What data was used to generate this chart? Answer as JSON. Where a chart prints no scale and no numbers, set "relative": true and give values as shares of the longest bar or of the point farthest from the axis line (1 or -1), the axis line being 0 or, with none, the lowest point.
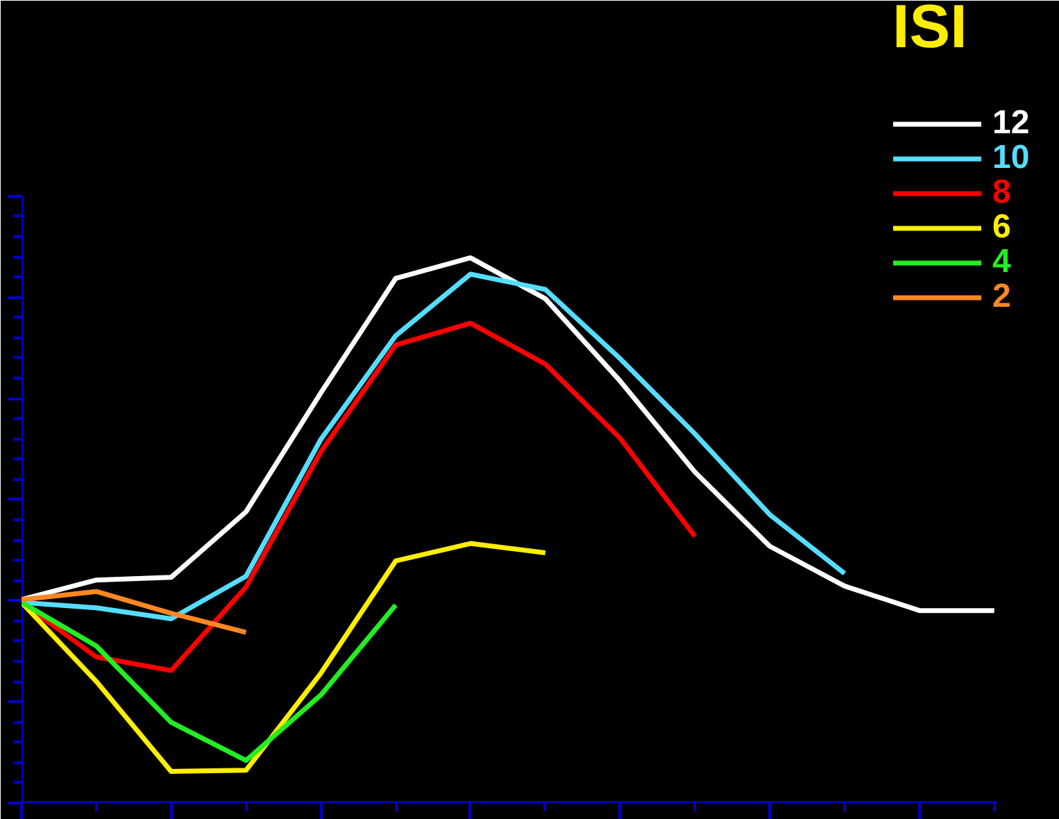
{
  "chart_data": {
    "type": "line",
    "relative": true,
    "legend_title": "ISI",
    "legend": "top right",
    "grid": false,
    "marker": "none",
    "line_style": "solid",
    "categories": [
      null,
      null,
      null,
      null,
      null,
      null,
      null,
      null,
      null,
      null,
      null,
      null,
      null,
      null
    ],
    "series": [
      {
        "name": "12",
        "color": "#ffffff",
        "values": [
          0.373,
          0.409,
          0.414,
          0.534,
          0.752,
          0.962,
          1.0,
          0.925,
          0.774,
          0.607,
          0.471,
          0.398,
          0.353,
          0.353
        ]
      },
      {
        "name": "10",
        "color": "#55ddff",
        "values": [
          0.368,
          0.358,
          0.338,
          0.416,
          0.667,
          0.857,
          0.97,
          0.942,
          0.815,
          0.677,
          0.529,
          0.421,
          null,
          null
        ]
      },
      {
        "name": "8",
        "color": "#ff0000",
        "values": [
          0.368,
          0.268,
          0.243,
          0.396,
          0.644,
          0.84,
          0.88,
          0.805,
          0.669,
          0.489,
          null,
          null,
          null,
          null
        ]
      },
      {
        "name": "6",
        "color": "#ffee00",
        "values": [
          0.368,
          0.223,
          0.058,
          0.06,
          0.238,
          0.444,
          0.476,
          0.459,
          null,
          null,
          null,
          null,
          null,
          null
        ]
      },
      {
        "name": "4",
        "color": "#22ee22",
        "values": [
          0.368,
          0.288,
          0.148,
          0.078,
          0.198,
          0.363,
          null,
          null,
          null,
          null,
          null,
          null,
          null,
          null
        ]
      },
      {
        "name": "2",
        "color": "#ff8822",
        "values": [
          0.373,
          0.388,
          0.348,
          0.313,
          null,
          null,
          null,
          null,
          null,
          null,
          null,
          null,
          null,
          null
        ]
      }
    ]
  }
}
